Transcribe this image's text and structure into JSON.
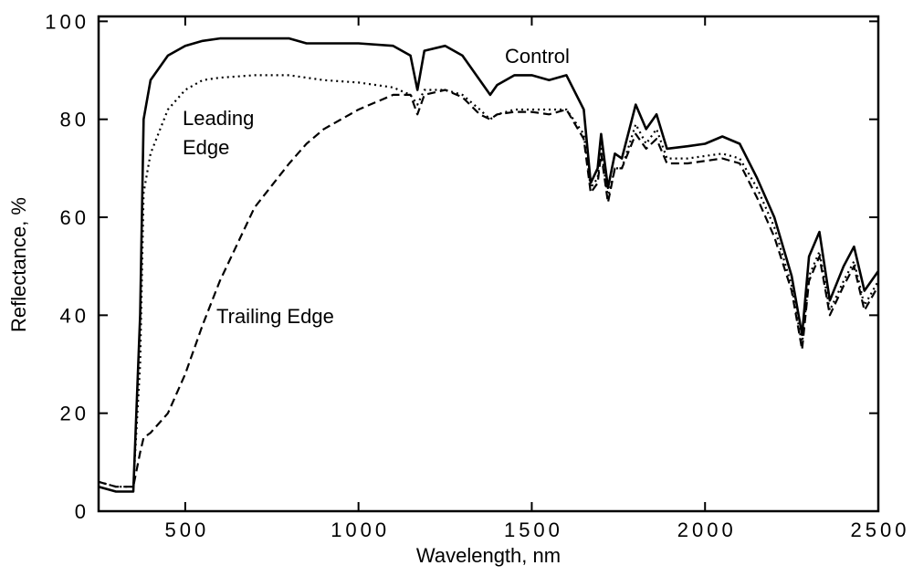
{
  "chart_data": {
    "type": "line",
    "x_label": "Wavelength, nm",
    "y_label": "Reflectance, %",
    "xlim": [
      250,
      2500
    ],
    "xticks": [
      500,
      1000,
      1500,
      2000,
      2500
    ],
    "ylim": [
      0,
      101
    ],
    "yticks": [
      0,
      20,
      40,
      60,
      80,
      100
    ],
    "grid": false,
    "x": [
      250,
      300,
      350,
      370,
      380,
      400,
      450,
      500,
      550,
      600,
      700,
      800,
      850,
      900,
      1000,
      1100,
      1150,
      1170,
      1190,
      1250,
      1300,
      1350,
      1380,
      1400,
      1450,
      1500,
      1550,
      1600,
      1650,
      1670,
      1690,
      1700,
      1720,
      1740,
      1760,
      1800,
      1830,
      1860,
      1890,
      1950,
      2000,
      2050,
      2100,
      2150,
      2200,
      2250,
      2280,
      2300,
      2330,
      2360,
      2400,
      2430,
      2460,
      2500
    ],
    "series": [
      {
        "name": "Control",
        "color": "#000000",
        "dash": "solid",
        "values": [
          5,
          4,
          4,
          40,
          80,
          88,
          93,
          95,
          96,
          96.5,
          96.5,
          96.5,
          95.5,
          95.5,
          95.5,
          95,
          93,
          86,
          94,
          95,
          93,
          88,
          85,
          87,
          89,
          89,
          88,
          89,
          82,
          67,
          70,
          77,
          66,
          73,
          72,
          83,
          78,
          81,
          74,
          74.5,
          75,
          76.5,
          75,
          68,
          60,
          48,
          36,
          52,
          57,
          43,
          50,
          54,
          45,
          49
        ]
      },
      {
        "name": "Leading Edge",
        "color": "#000000",
        "dash": "dotted",
        "values": [
          6,
          5,
          5,
          30,
          65,
          73,
          82,
          86,
          88,
          88.5,
          89,
          89,
          88.5,
          88,
          87.5,
          86.5,
          85,
          83,
          86,
          86,
          85,
          82,
          80,
          81,
          82,
          82,
          82,
          82,
          77,
          66,
          68,
          74,
          64,
          70,
          70,
          79,
          75,
          78,
          72,
          72,
          72.5,
          73,
          72,
          66,
          58,
          46,
          34,
          48,
          53,
          41,
          47,
          51,
          42,
          47
        ]
      },
      {
        "name": "Trailing Edge",
        "color": "#000000",
        "dash": "dashed",
        "values": [
          6,
          5,
          5,
          12,
          15,
          16,
          20,
          28,
          38,
          47,
          62,
          71,
          75,
          78,
          82,
          85,
          85,
          81,
          85,
          86,
          84.5,
          81,
          80,
          81,
          81.5,
          81.5,
          81,
          82,
          76,
          65,
          67,
          73,
          63,
          70,
          70,
          77,
          74,
          76,
          71,
          71,
          71.5,
          72,
          71,
          64,
          56,
          45,
          33,
          47,
          52,
          40,
          46,
          50,
          41,
          46
        ]
      }
    ]
  }
}
